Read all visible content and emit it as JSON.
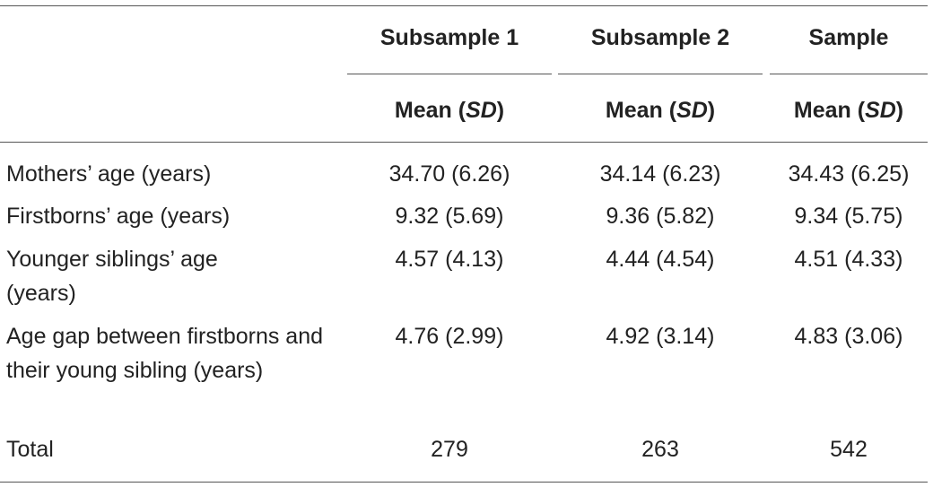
{
  "table": {
    "columns": [
      {
        "title": "Subsample 1",
        "subhead_prefix": "Mean (",
        "subhead_italic": "SD",
        "subhead_suffix": ")"
      },
      {
        "title": "Subsample 2",
        "subhead_prefix": "Mean (",
        "subhead_italic": "SD",
        "subhead_suffix": ")"
      },
      {
        "title": "Sample",
        "subhead_prefix": "Mean (",
        "subhead_italic": "SD",
        "subhead_suffix": ")"
      }
    ],
    "rows": [
      {
        "label": "Mothers’ age (years)",
        "values": [
          "34.70 (6.26)",
          "34.14 (6.23)",
          "34.43 (6.25)"
        ]
      },
      {
        "label": "Firstborns’ age (years)",
        "values": [
          "9.32 (5.69)",
          "9.36 (5.82)",
          "9.34 (5.75)"
        ]
      },
      {
        "label": "Younger siblings’ age (years)",
        "values": [
          "4.57 (4.13)",
          "4.44 (4.54)",
          "4.51 (4.33)"
        ]
      },
      {
        "label": "Age gap between firstborns and their young sibling (years)",
        "values": [
          "4.76 (2.99)",
          "4.92 (3.14)",
          "4.83 (3.06)"
        ]
      },
      {
        "label": "Total",
        "values": [
          "279",
          "263",
          "542"
        ]
      }
    ]
  }
}
